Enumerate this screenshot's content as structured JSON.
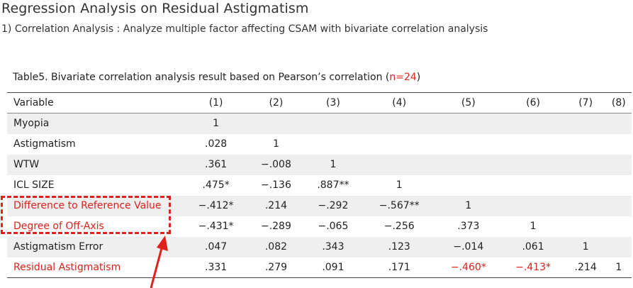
{
  "title": "Regression Analysis on Residual Astigmatism",
  "subtitle": "1) Correlation Analysis : Analyze multiple factor affecting CSAM with bivariate correlation analysis",
  "caption": {
    "text": "Table5. Bivariate correlation analysis result based on Pearson’s correlation (",
    "n": "n=24",
    "close": ")"
  },
  "table": {
    "headers": [
      "Variable",
      "(1)",
      "(2)",
      "(3)",
      "(4)",
      "(5)",
      "(6)",
      "(7)",
      "(8)"
    ],
    "rows": [
      {
        "label": "Myopia",
        "values": [
          "1",
          "",
          "",
          "",
          "",
          "",
          "",
          ""
        ]
      },
      {
        "label": "Astigmatism",
        "values": [
          ".028",
          "1",
          "",
          "",
          "",
          "",
          "",
          ""
        ]
      },
      {
        "label": "WTW",
        "values": [
          ".361",
          "−.008",
          "1",
          "",
          "",
          "",
          "",
          ""
        ]
      },
      {
        "label": "ICL SIZE",
        "values": [
          ".475*",
          "−.136",
          ".887**",
          "1",
          "",
          "",
          "",
          ""
        ]
      },
      {
        "label": "Difference to Reference Value",
        "values": [
          "−.412*",
          ".214",
          "−.292",
          "−.567**",
          "1",
          "",
          "",
          ""
        ]
      },
      {
        "label": "Degree of Off-Axis",
        "values": [
          "−.431*",
          "−.289",
          "−.065",
          "−.256",
          ".373",
          "1",
          "",
          ""
        ]
      },
      {
        "label": "Astigmatism Error",
        "values": [
          ".047",
          ".082",
          ".343",
          ".123",
          "−.014",
          ".061",
          "1",
          ""
        ]
      },
      {
        "label": "Residual Astigmatism",
        "values": [
          ".331",
          ".279",
          ".091",
          ".171",
          "−.460*",
          "−.413*",
          ".214",
          "1"
        ]
      }
    ]
  },
  "colors": {
    "accent": "#e0201b"
  }
}
